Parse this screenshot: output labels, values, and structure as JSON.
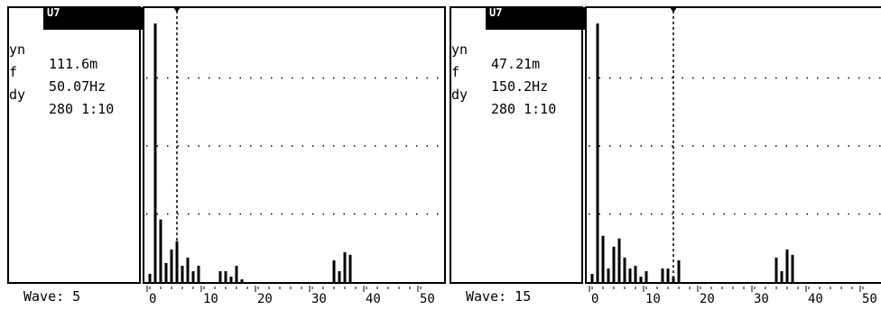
{
  "panels": [
    {
      "header": "U7",
      "rows": [
        {
          "key": "yn",
          "value": "111.6m"
        },
        {
          "key": "f",
          "value": "50.07Hz"
        },
        {
          "key": "dy",
          "value": "280 1:10"
        }
      ],
      "wave_label": "Wave: 5",
      "cursor_harmonic": 5
    },
    {
      "header": "U7",
      "rows": [
        {
          "key": "yn",
          "value": "47.21m"
        },
        {
          "key": "f",
          "value": "150.2Hz"
        },
        {
          "key": "dy",
          "value": "280 1:10"
        }
      ],
      "wave_label": "Wave: 15",
      "cursor_harmonic": 15
    }
  ],
  "chart_data": [
    {
      "type": "bar",
      "x_tick_labels": [
        "0",
        "10",
        "20",
        "30",
        "40",
        "50"
      ],
      "x_ticks": [
        0,
        10,
        20,
        30,
        40,
        50
      ],
      "xlim": [
        0,
        50
      ],
      "ylim": [
        0,
        100
      ],
      "grid": "dotted horizontal",
      "cursor_harmonic": 5,
      "values": [
        3,
        95,
        23,
        7,
        12,
        15,
        6,
        9,
        4,
        6,
        0,
        0,
        0,
        4,
        4,
        2,
        6,
        1,
        0,
        0,
        0,
        0,
        0,
        0,
        0,
        0,
        0,
        0,
        0,
        0,
        0,
        0,
        0,
        0,
        8,
        4,
        11,
        10,
        0,
        0,
        0,
        0,
        0,
        0,
        0,
        0,
        0,
        0,
        0,
        0,
        0
      ]
    },
    {
      "type": "bar",
      "x_tick_labels": [
        "0",
        "10",
        "20",
        "30",
        "40",
        "50"
      ],
      "x_ticks": [
        0,
        10,
        20,
        30,
        40,
        50
      ],
      "xlim": [
        0,
        50
      ],
      "ylim": [
        0,
        100
      ],
      "grid": "dotted horizontal",
      "cursor_harmonic": 15,
      "values": [
        3,
        95,
        17,
        5,
        13,
        16,
        9,
        5,
        6,
        2,
        4,
        0,
        0,
        5,
        5,
        2,
        8,
        0,
        0,
        0,
        0,
        0,
        0,
        0,
        0,
        0,
        0,
        0,
        0,
        0,
        0,
        0,
        0,
        0,
        9,
        4,
        12,
        10,
        0,
        0,
        0,
        0,
        0,
        0,
        0,
        0,
        0,
        0,
        0,
        0,
        0
      ]
    }
  ]
}
